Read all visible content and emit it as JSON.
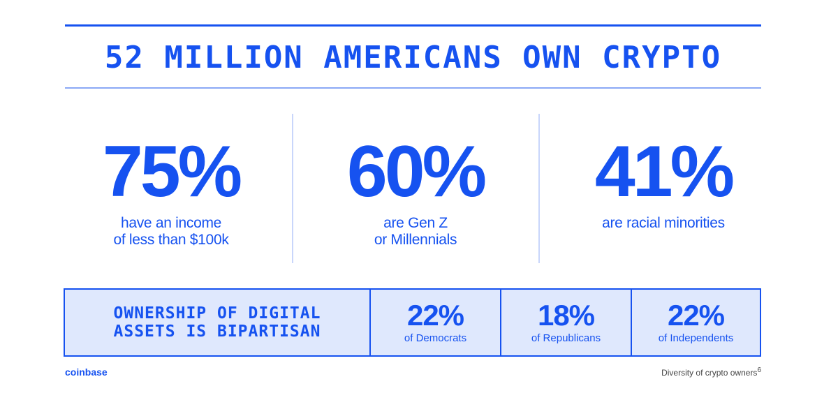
{
  "headline": "52 MILLION AMERICANS OWN CRYPTO",
  "stats": [
    {
      "value": "75%",
      "description": "have an income\nof less than $100k"
    },
    {
      "value": "60%",
      "description": "are Gen Z\nor Millennials"
    },
    {
      "value": "41%",
      "description": "are racial minorities"
    }
  ],
  "bipartisan": {
    "label": "OWNERSHIP OF DIGITAL\nASSETS IS BIPARTISAN",
    "parties": [
      {
        "value": "22%",
        "label": "of Democrats"
      },
      {
        "value": "18%",
        "label": "of Republicans"
      },
      {
        "value": "22%",
        "label": "of Independents"
      }
    ]
  },
  "footer": {
    "brand": "coinbase",
    "note": "Diversity of crypto owners",
    "note_ref": "6"
  },
  "colors": {
    "accent": "#1652f0",
    "box_fill": "#dfe8fd"
  }
}
